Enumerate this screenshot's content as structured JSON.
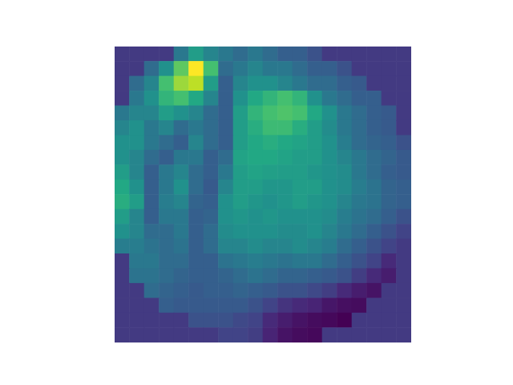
{
  "chart_data": {
    "type": "heatmap",
    "tick_labels": false,
    "cells": [
      [
        0.17,
        0.17,
        0.17,
        0.17,
        0.4,
        0.55,
        0.45,
        0.4,
        0.35,
        0.4,
        0.35,
        0.3,
        0.3,
        0.25,
        0.17,
        0.17,
        0.17,
        0.17,
        0.17,
        0.17
      ],
      [
        0.17,
        0.17,
        0.35,
        0.5,
        0.75,
        1.0,
        0.7,
        0.35,
        0.4,
        0.45,
        0.4,
        0.4,
        0.35,
        0.3,
        0.3,
        0.25,
        0.17,
        0.17,
        0.17,
        0.17
      ],
      [
        0.17,
        0.35,
        0.45,
        0.7,
        0.85,
        0.9,
        0.55,
        0.3,
        0.45,
        0.5,
        0.5,
        0.45,
        0.4,
        0.35,
        0.35,
        0.3,
        0.28,
        0.17,
        0.17,
        0.17
      ],
      [
        0.17,
        0.4,
        0.5,
        0.65,
        0.7,
        0.6,
        0.45,
        0.3,
        0.5,
        0.6,
        0.65,
        0.7,
        0.65,
        0.5,
        0.4,
        0.35,
        0.3,
        0.3,
        0.17,
        0.17
      ],
      [
        0.4,
        0.45,
        0.45,
        0.55,
        0.5,
        0.45,
        0.35,
        0.3,
        0.55,
        0.65,
        0.7,
        0.72,
        0.7,
        0.6,
        0.5,
        0.4,
        0.35,
        0.3,
        0.28,
        0.17
      ],
      [
        0.45,
        0.5,
        0.4,
        0.45,
        0.35,
        0.4,
        0.35,
        0.3,
        0.55,
        0.62,
        0.68,
        0.68,
        0.62,
        0.55,
        0.48,
        0.4,
        0.35,
        0.3,
        0.28,
        0.17
      ],
      [
        0.5,
        0.5,
        0.4,
        0.35,
        0.3,
        0.45,
        0.35,
        0.3,
        0.55,
        0.6,
        0.62,
        0.6,
        0.58,
        0.55,
        0.5,
        0.42,
        0.35,
        0.32,
        0.3,
        0.25
      ],
      [
        0.5,
        0.45,
        0.35,
        0.3,
        0.4,
        0.4,
        0.3,
        0.35,
        0.58,
        0.6,
        0.6,
        0.58,
        0.55,
        0.55,
        0.5,
        0.45,
        0.4,
        0.35,
        0.32,
        0.28
      ],
      [
        0.55,
        0.45,
        0.3,
        0.4,
        0.45,
        0.35,
        0.3,
        0.4,
        0.55,
        0.58,
        0.56,
        0.55,
        0.55,
        0.52,
        0.5,
        0.48,
        0.4,
        0.35,
        0.3,
        0.28
      ],
      [
        0.6,
        0.5,
        0.3,
        0.4,
        0.5,
        0.35,
        0.28,
        0.45,
        0.55,
        0.55,
        0.52,
        0.52,
        0.55,
        0.55,
        0.5,
        0.48,
        0.42,
        0.38,
        0.32,
        0.3
      ],
      [
        0.62,
        0.55,
        0.3,
        0.42,
        0.45,
        0.32,
        0.3,
        0.5,
        0.55,
        0.52,
        0.5,
        0.52,
        0.55,
        0.52,
        0.5,
        0.45,
        0.4,
        0.38,
        0.32,
        0.3
      ],
      [
        0.55,
        0.45,
        0.3,
        0.4,
        0.4,
        0.3,
        0.32,
        0.5,
        0.52,
        0.5,
        0.52,
        0.5,
        0.5,
        0.5,
        0.48,
        0.42,
        0.38,
        0.35,
        0.3,
        0.25
      ],
      [
        0.5,
        0.45,
        0.35,
        0.35,
        0.4,
        0.3,
        0.35,
        0.48,
        0.5,
        0.5,
        0.5,
        0.48,
        0.48,
        0.5,
        0.45,
        0.4,
        0.35,
        0.3,
        0.25,
        0.2
      ],
      [
        0.42,
        0.42,
        0.38,
        0.35,
        0.38,
        0.3,
        0.35,
        0.45,
        0.45,
        0.48,
        0.45,
        0.45,
        0.48,
        0.45,
        0.42,
        0.35,
        0.3,
        0.25,
        0.2,
        0.17
      ],
      [
        0.17,
        0.4,
        0.4,
        0.35,
        0.35,
        0.3,
        0.3,
        0.38,
        0.4,
        0.42,
        0.4,
        0.38,
        0.4,
        0.4,
        0.35,
        0.3,
        0.25,
        0.2,
        0.12,
        0.17
      ],
      [
        0.17,
        0.38,
        0.38,
        0.35,
        0.32,
        0.3,
        0.3,
        0.32,
        0.35,
        0.38,
        0.35,
        0.32,
        0.32,
        0.3,
        0.28,
        0.25,
        0.18,
        0.12,
        0.08,
        0.17
      ],
      [
        0.17,
        0.17,
        0.35,
        0.32,
        0.3,
        0.28,
        0.3,
        0.3,
        0.32,
        0.3,
        0.28,
        0.25,
        0.25,
        0.22,
        0.18,
        0.12,
        0.08,
        0.05,
        0.17,
        0.17
      ],
      [
        0.17,
        0.17,
        0.17,
        0.3,
        0.28,
        0.28,
        0.28,
        0.28,
        0.28,
        0.25,
        0.2,
        0.15,
        0.12,
        0.1,
        0.06,
        0.04,
        0.03,
        0.17,
        0.17,
        0.17
      ],
      [
        0.17,
        0.17,
        0.17,
        0.17,
        0.17,
        0.25,
        0.25,
        0.25,
        0.22,
        0.2,
        0.12,
        0.08,
        0.05,
        0.03,
        0.02,
        0.0,
        0.17,
        0.17,
        0.17,
        0.17
      ],
      [
        0.17,
        0.17,
        0.17,
        0.17,
        0.17,
        0.17,
        0.17,
        0.2,
        0.2,
        0.18,
        0.1,
        0.05,
        0.03,
        0.02,
        0.17,
        0.17,
        0.17,
        0.17,
        0.17,
        0.17
      ]
    ]
  }
}
